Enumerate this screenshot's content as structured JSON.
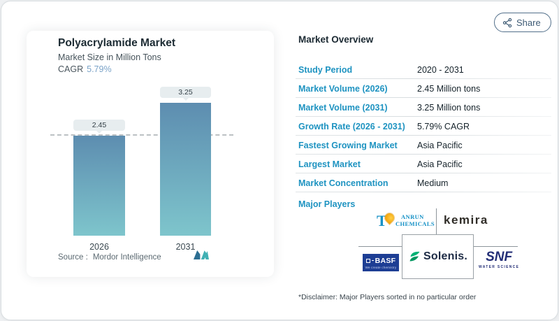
{
  "share": {
    "label": "Share",
    "icon": "share-nodes-icon"
  },
  "card": {
    "title": "Polyacrylamide Market",
    "subtitle": "Market Size in Million Tons",
    "cagr_label": "CAGR",
    "cagr_value": "5.79%",
    "source_label": "Source :",
    "source_value": "Mordor Intelligence"
  },
  "chart_data": {
    "type": "bar",
    "title": "Polyacrylamide Market",
    "ylabel": "Market Size in Million Tons",
    "categories": [
      "2026",
      "2031"
    ],
    "values": [
      2.45,
      3.25
    ],
    "ylim": [
      0,
      3.25
    ],
    "reference_line_at": 2.45,
    "grid": false,
    "bar_gradient": [
      "#5d8db0",
      "#7ec5cc"
    ],
    "label_pill_bg": "#e7edef"
  },
  "overview": {
    "title": "Market Overview",
    "rows": [
      {
        "label": "Study Period",
        "value": "2020 - 2031"
      },
      {
        "label": "Market Volume (2026)",
        "value": "2.45 Million tons"
      },
      {
        "label": "Market Volume (2031)",
        "value": "3.25 Million tons"
      },
      {
        "label": "Growth Rate (2026 - 2031)",
        "value": "5.79% CAGR"
      },
      {
        "label": "Fastest Growing Market",
        "value": "Asia Pacific"
      },
      {
        "label": "Largest Market",
        "value": "Asia Pacific"
      },
      {
        "label": "Market Concentration",
        "value": "Medium"
      }
    ],
    "major_players_label": "Major Players",
    "disclaimer": "*Disclaimer: Major Players sorted in no particular order"
  },
  "players": {
    "tianrun": {
      "t": "T",
      "line1": "ANRUN",
      "line2": "CHEMICALS",
      "name": "Tianrun Chemicals"
    },
    "kemira": {
      "wordmark": "kemira",
      "name": "Kemira"
    },
    "basf": {
      "wordmark": "BASF",
      "tagline": "We create chemistry",
      "name": "BASF"
    },
    "solenis": {
      "wordmark": "Solenis.",
      "name": "Solenis"
    },
    "snf": {
      "wordmark": "SNF",
      "tagline": "WATER SCIENCE",
      "name": "SNF"
    }
  },
  "colors": {
    "accent_teal": "#1e93c1",
    "cagr_blue": "#7ba3c8",
    "dark_text": "#16232b",
    "share_blue": "#3e5b75",
    "mi_logo_dark": "#2c6e92",
    "mi_logo_teal": "#41b0b4",
    "tianrun_blue": "#1691c6",
    "tianrun_drop": "#f2a30b",
    "basf_blue": "#1d3e94",
    "solenis_green": "#00b274",
    "snf_navy": "#242f77"
  }
}
